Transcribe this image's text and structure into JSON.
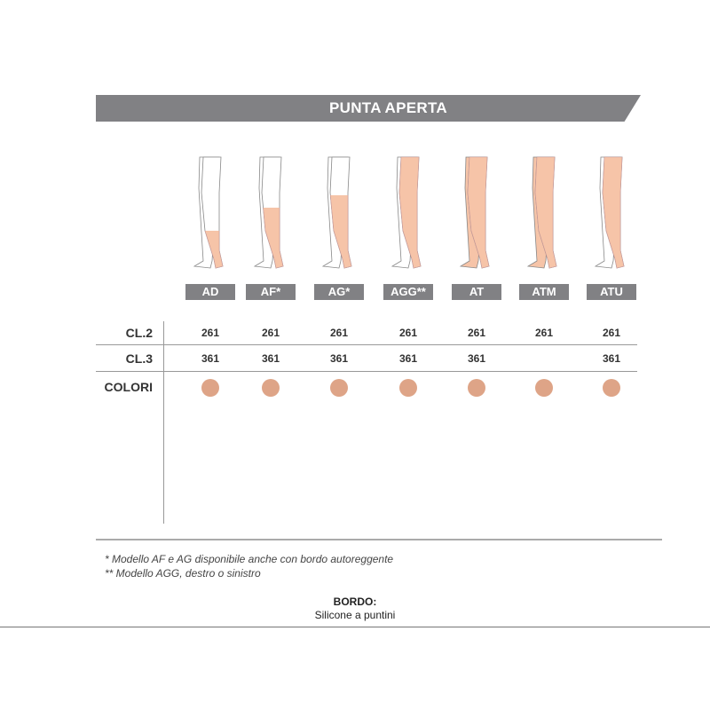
{
  "header": {
    "title": "PUNTA APERTA"
  },
  "models": [
    {
      "code": "AD",
      "cl2": "261",
      "cl3": "361",
      "coverage": "knee"
    },
    {
      "code": "AF*",
      "cl2": "261",
      "cl3": "361",
      "coverage": "mid-thigh"
    },
    {
      "code": "AG*",
      "cl2": "261",
      "cl3": "361",
      "coverage": "thigh"
    },
    {
      "code": "AGG**",
      "cl2": "261",
      "cl3": "361",
      "coverage": "one-leg-full"
    },
    {
      "code": "AT",
      "cl2": "261",
      "cl3": "361",
      "coverage": "tights"
    },
    {
      "code": "ATM",
      "cl2": "261",
      "cl3": "",
      "coverage": "maternity-tights"
    },
    {
      "code": "ATU",
      "cl2": "261",
      "cl3": "361",
      "coverage": "one-leg-tights"
    }
  ],
  "rows": {
    "cl2": "CL.2",
    "cl3": "CL.3",
    "colori": "COLORI"
  },
  "colors": {
    "skin": "#f6c4a8",
    "dot": "#dea487",
    "band": "#818184"
  },
  "notes": [
    "* Modello AF e AG disponibile anche con bordo autoreggente",
    "** Modello AGG, destro o sinistro"
  ],
  "bordo": {
    "label": "BORDO:",
    "value": "Silicone a puntini"
  }
}
